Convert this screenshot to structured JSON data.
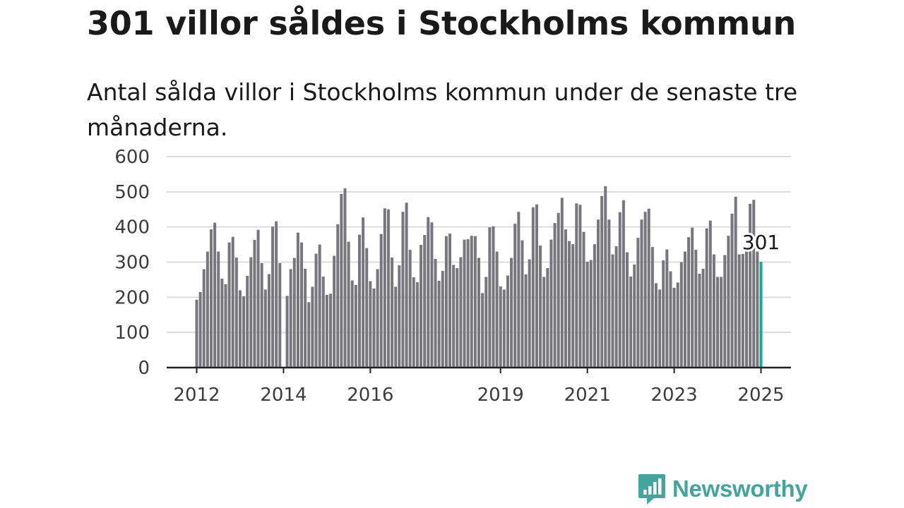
{
  "title": "301 villor såldes i Stockholms kommun",
  "subtitle": "Antal sålda villor i Stockholms kommun under de senaste tre månaderna.",
  "brand": {
    "name": "Newsworthy",
    "icon": "newsworthy-logo-icon",
    "color": "#43a59c"
  },
  "colors": {
    "bar": "#77767c",
    "highlight": "#1aa79c",
    "grid": "#dcdcdc",
    "axis": "#222222",
    "text": "#3c3c3c"
  },
  "chart_data": {
    "type": "bar",
    "title": "301 villor såldes i Stockholms kommun",
    "subtitle": "Antal sålda villor i Stockholms kommun under de senaste tre månaderna.",
    "xlabel": "",
    "ylabel": "",
    "ylim": [
      0,
      600
    ],
    "yticks": [
      0,
      100,
      200,
      300,
      400,
      500,
      600
    ],
    "xticks": [
      "2012",
      "2014",
      "2016",
      "2019",
      "2021",
      "2023",
      "2025"
    ],
    "xlim": [
      "2012-01",
      "2025-01"
    ],
    "grid": true,
    "highlight_label": "301",
    "x": [
      "2012-01",
      "2012-02",
      "2012-03",
      "2012-04",
      "2012-05",
      "2012-06",
      "2012-07",
      "2012-08",
      "2012-09",
      "2012-10",
      "2012-11",
      "2012-12",
      "2013-01",
      "2013-02",
      "2013-03",
      "2013-04",
      "2013-05",
      "2013-06",
      "2013-07",
      "2013-08",
      "2013-09",
      "2013-10",
      "2013-11",
      "2013-12",
      "2014-01",
      "2014-02",
      "2014-03",
      "2014-04",
      "2014-05",
      "2014-06",
      "2014-07",
      "2014-08",
      "2014-09",
      "2014-10",
      "2014-11",
      "2014-12",
      "2015-01",
      "2015-02",
      "2015-03",
      "2015-04",
      "2015-05",
      "2015-06",
      "2015-07",
      "2015-08",
      "2015-09",
      "2015-10",
      "2015-11",
      "2015-12",
      "2016-01",
      "2016-02",
      "2016-03",
      "2016-04",
      "2016-05",
      "2016-06",
      "2016-07",
      "2016-08",
      "2016-09",
      "2016-10",
      "2016-11",
      "2016-12",
      "2017-01",
      "2017-02",
      "2017-03",
      "2017-04",
      "2017-05",
      "2017-06",
      "2017-07",
      "2017-08",
      "2017-09",
      "2017-10",
      "2017-11",
      "2017-12",
      "2018-01",
      "2018-02",
      "2018-03",
      "2018-04",
      "2018-05",
      "2018-06",
      "2018-07",
      "2018-08",
      "2018-09",
      "2018-10",
      "2018-11",
      "2018-12",
      "2019-01",
      "2019-02",
      "2019-03",
      "2019-04",
      "2019-05",
      "2019-06",
      "2019-07",
      "2019-08",
      "2019-09",
      "2019-10",
      "2019-11",
      "2019-12",
      "2020-01",
      "2020-02",
      "2020-03",
      "2020-04",
      "2020-05",
      "2020-06",
      "2020-07",
      "2020-08",
      "2020-09",
      "2020-10",
      "2020-11",
      "2020-12",
      "2021-01",
      "2021-02",
      "2021-03",
      "2021-04",
      "2021-05",
      "2021-06",
      "2021-07",
      "2021-08",
      "2021-09",
      "2021-10",
      "2021-11",
      "2021-12",
      "2022-01",
      "2022-02",
      "2022-03",
      "2022-04",
      "2022-05",
      "2022-06",
      "2022-07",
      "2022-08",
      "2022-09",
      "2022-10",
      "2022-11",
      "2022-12",
      "2023-01",
      "2023-02",
      "2023-03",
      "2023-04",
      "2023-05",
      "2023-06",
      "2023-07",
      "2023-08",
      "2023-09",
      "2023-10",
      "2023-11",
      "2023-12",
      "2024-01",
      "2024-02",
      "2024-03",
      "2024-04",
      "2024-05",
      "2024-06",
      "2024-07",
      "2024-08",
      "2024-09",
      "2024-10",
      "2024-11",
      "2024-12",
      "2025-01"
    ],
    "values": [
      193,
      215,
      280,
      330,
      393,
      412,
      330,
      253,
      237,
      356,
      372,
      313,
      220,
      203,
      261,
      314,
      363,
      392,
      297,
      222,
      266,
      401,
      416,
      297,
      null,
      204,
      280,
      312,
      384,
      356,
      281,
      186,
      230,
      324,
      350,
      259,
      207,
      210,
      318,
      408,
      494,
      510,
      358,
      248,
      235,
      378,
      427,
      340,
      246,
      225,
      280,
      380,
      453,
      450,
      313,
      230,
      291,
      443,
      469,
      335,
      257,
      243,
      349,
      377,
      428,
      413,
      309,
      247,
      275,
      374,
      381,
      292,
      283,
      314,
      364,
      365,
      375,
      374,
      312,
      212,
      258,
      399,
      402,
      330,
      231,
      222,
      262,
      312,
      409,
      443,
      362,
      265,
      308,
      456,
      464,
      347,
      258,
      283,
      364,
      411,
      440,
      483,
      393,
      360,
      351,
      467,
      463,
      386,
      301,
      306,
      351,
      421,
      488,
      516,
      421,
      322,
      345,
      442,
      476,
      328,
      259,
      293,
      369,
      421,
      443,
      452,
      343,
      240,
      222,
      305,
      336,
      274,
      227,
      242,
      300,
      330,
      371,
      398,
      335,
      267,
      281,
      396,
      418,
      322,
      258,
      258,
      320,
      375,
      438,
      486,
      322,
      323,
      331,
      466,
      477,
      330,
      301
    ]
  }
}
